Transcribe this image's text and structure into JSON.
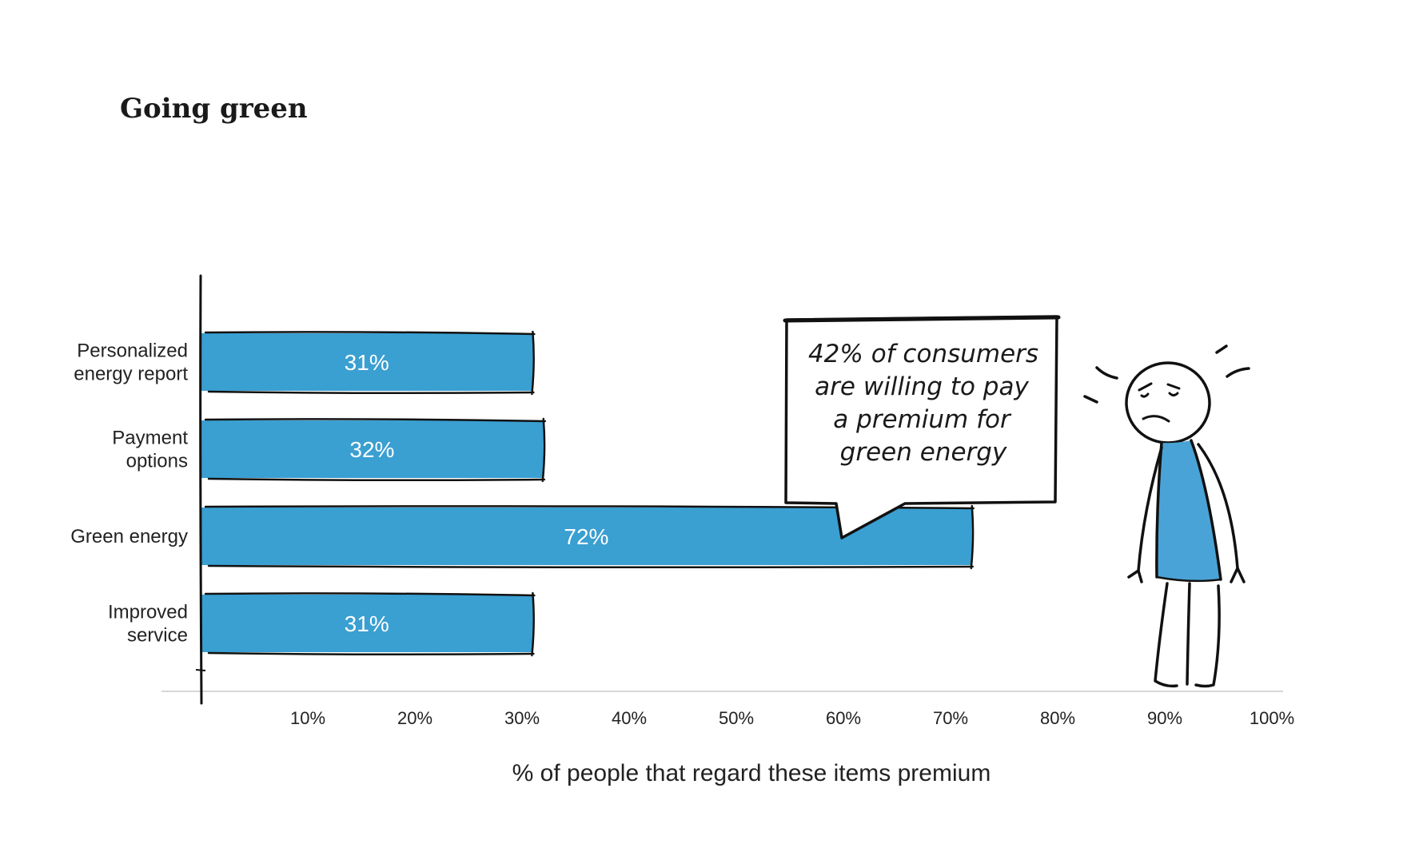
{
  "chart_data": {
    "type": "bar",
    "orientation": "horizontal",
    "title": "Going green",
    "categories": [
      [
        "Personalized",
        "energy report"
      ],
      [
        "Payment",
        "options"
      ],
      [
        "Green energy"
      ],
      [
        "Improved",
        "service"
      ]
    ],
    "values": [
      31,
      32,
      72,
      31
    ],
    "value_labels": [
      "31%",
      "32%",
      "72%",
      "31%"
    ],
    "xlim": [
      0,
      100
    ],
    "xticks": [
      10,
      20,
      30,
      40,
      50,
      60,
      70,
      80,
      90,
      100
    ],
    "xtick_labels": [
      "10%",
      "20%",
      "30%",
      "40%",
      "50%",
      "60%",
      "70%",
      "80%",
      "90%",
      "100%"
    ],
    "xlabel": "% of people that regard these items premium",
    "ylabel": "",
    "grid": false,
    "legend": "none",
    "annotation": {
      "lines": [
        "42% of consumers",
        "are willing to pay",
        "a premium for",
        "green energy"
      ],
      "points_to_category": "Green energy"
    }
  },
  "colors": {
    "bar": "#3a9fd1",
    "bar_outline": "#111111",
    "value_text": "#ffffff",
    "text": "#222222",
    "axis_baseline": "#c8c8c8",
    "figure_shirt": "#4aa3d6"
  },
  "illustration": {
    "icon": "worried-stick-figure-icon"
  }
}
